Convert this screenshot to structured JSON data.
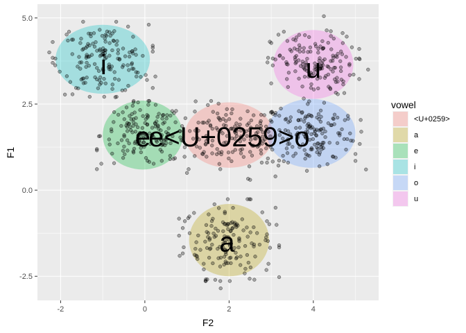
{
  "chart_data": {
    "type": "scatter",
    "title": "",
    "xlabel": "F2",
    "ylabel": "F1",
    "xlim": [
      -2.55,
      5.55
    ],
    "ylim": [
      -3.2,
      5.4
    ],
    "xticks": [
      -2,
      0,
      2,
      4
    ],
    "xtick_labels": [
      "-2",
      "0",
      "2",
      "4"
    ],
    "yticks": [
      -2.5,
      0,
      2.5,
      5
    ],
    "ytick_labels": [
      "-2.5",
      "0.0",
      "2.5",
      "5.0"
    ],
    "grid": true,
    "legend": {
      "title": "vowel",
      "position": "right"
    },
    "series": [
      {
        "name": "<U+0259>",
        "color": "#F8766D",
        "center": [
          2.0,
          1.6
        ],
        "spread": [
          0.75,
          0.5
        ],
        "ellipse": [
          1.05,
          0.95
        ],
        "label": "e<U+0259>o",
        "label_pos": [
          2.0,
          1.55
        ],
        "n": 150,
        "extra": [
          [
            1.0,
            0.5
          ],
          [
            2.5,
            0.3
          ],
          [
            2.45,
            0.33
          ],
          [
            2.9,
            0.8
          ],
          [
            3.1,
            0.4
          ],
          [
            3.0,
            3.1
          ]
        ]
      },
      {
        "name": "a",
        "color": "#B79F00",
        "center": [
          2.0,
          -1.45
        ],
        "spread": [
          0.6,
          0.6
        ],
        "ellipse": [
          0.95,
          1.05
        ],
        "label": "a",
        "label_pos": [
          1.95,
          -1.5
        ],
        "n": 150,
        "extra": [
          [
            0.95,
            -0.9
          ],
          [
            0.9,
            -1.1
          ],
          [
            2.6,
            -2.6
          ],
          [
            1.8,
            -2.85
          ],
          [
            1.4,
            -2.3
          ]
        ]
      },
      {
        "name": "e",
        "color": "#00BA38",
        "center": [
          -0.05,
          1.6
        ],
        "spread": [
          0.55,
          0.5
        ],
        "ellipse": [
          0.95,
          1.0
        ],
        "label": "e",
        "label_pos": [
          -0.05,
          1.55
        ],
        "n": 150,
        "extra": [
          [
            0.6,
            1.0
          ],
          [
            0.6,
            0.9
          ],
          [
            -0.7,
            2.7
          ],
          [
            0.25,
            3.3
          ]
        ]
      },
      {
        "name": "i",
        "color": "#00BFC4",
        "center": [
          -1.0,
          3.8
        ],
        "spread": [
          0.6,
          0.55
        ],
        "ellipse": [
          1.12,
          1.0
        ],
        "label": "i",
        "label_pos": [
          -0.98,
          3.65
        ],
        "n": 150,
        "extra": [
          [
            -2.27,
            4.0
          ],
          [
            -1.8,
            4.6
          ],
          [
            -0.05,
            3.9
          ],
          [
            -0.2,
            3.3
          ],
          [
            0.05,
            3.2
          ],
          [
            -0.95,
            4.4
          ]
        ]
      },
      {
        "name": "o",
        "color": "#619CFF",
        "center": [
          3.95,
          1.65
        ],
        "spread": [
          0.6,
          0.55
        ],
        "ellipse": [
          1.05,
          1.0
        ],
        "label": "",
        "label_pos": [
          3.95,
          1.65
        ],
        "n": 150,
        "extra": [
          [
            5.25,
            0.6
          ],
          [
            5.0,
            0.85
          ],
          [
            5.0,
            1.05
          ],
          [
            3.2,
            1.6
          ],
          [
            3.4,
            0.8
          ]
        ]
      },
      {
        "name": "u",
        "color": "#F564E3",
        "center": [
          4.0,
          3.65
        ],
        "spread": [
          0.55,
          0.5
        ],
        "ellipse": [
          0.95,
          1.0
        ],
        "label": "u",
        "label_pos": [
          4.0,
          3.55
        ],
        "n": 150,
        "extra": [
          [
            4.25,
            5.05
          ],
          [
            5.3,
            3.5
          ],
          [
            5.1,
            3.8
          ],
          [
            3.3,
            4.6
          ],
          [
            3.8,
            4.5
          ]
        ]
      }
    ]
  }
}
